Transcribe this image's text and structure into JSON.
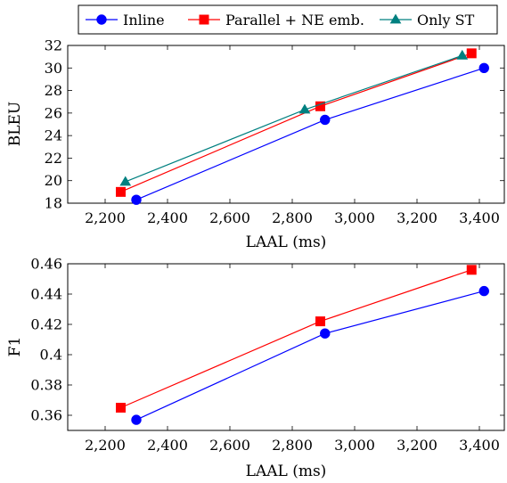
{
  "legend": {
    "placement": "top-center",
    "entries": [
      {
        "label": "Inline",
        "color": "#0000ff",
        "marker": "circle"
      },
      {
        "label": "Parallel + NE emb.",
        "color": "#ff0000",
        "marker": "square"
      },
      {
        "label": "Only ST",
        "color": "#008080",
        "marker": "triangle"
      }
    ]
  },
  "chart_data": [
    {
      "type": "line",
      "xlabel": "LAAL (ms)",
      "ylabel": "BLEU",
      "xlim": [
        2080,
        3480
      ],
      "ylim": [
        18,
        32
      ],
      "xticks": [
        "2,200",
        "2,400",
        "2,600",
        "2,800",
        "3,000",
        "3,200",
        "3,400"
      ],
      "xtick_values": [
        2200,
        2400,
        2600,
        2800,
        3000,
        3200,
        3400
      ],
      "yticks": [
        "18",
        "20",
        "22",
        "24",
        "26",
        "28",
        "30",
        "32"
      ],
      "ytick_values": [
        18,
        20,
        22,
        24,
        26,
        28,
        30,
        32
      ],
      "grid": false,
      "series": [
        {
          "name": "Inline",
          "color": "#0000ff",
          "marker": "circle",
          "x": [
            2300,
            2905,
            3415
          ],
          "y": [
            18.3,
            25.4,
            30.0
          ]
        },
        {
          "name": "Parallel + NE emb.",
          "color": "#ff0000",
          "marker": "square",
          "x": [
            2250,
            2890,
            3375
          ],
          "y": [
            19.0,
            26.6,
            31.3
          ]
        },
        {
          "name": "Only ST",
          "color": "#008080",
          "marker": "triangle",
          "x": [
            2265,
            2840,
            3345
          ],
          "y": [
            19.9,
            26.3,
            31.1
          ]
        }
      ]
    },
    {
      "type": "line",
      "xlabel": "LAAL (ms)",
      "ylabel": "F1",
      "xlim": [
        2080,
        3480
      ],
      "ylim": [
        0.35,
        0.46
      ],
      "xticks": [
        "2,200",
        "2,400",
        "2,600",
        "2,800",
        "3,000",
        "3,200",
        "3,400"
      ],
      "xtick_values": [
        2200,
        2400,
        2600,
        2800,
        3000,
        3200,
        3400
      ],
      "yticks": [
        "0.36",
        "0.38",
        "0.4",
        "0.42",
        "0.44",
        "0.46"
      ],
      "ytick_values": [
        0.36,
        0.38,
        0.4,
        0.42,
        0.44,
        0.46
      ],
      "grid": false,
      "series": [
        {
          "name": "Inline",
          "color": "#0000ff",
          "marker": "circle",
          "x": [
            2300,
            2905,
            3415
          ],
          "y": [
            0.357,
            0.414,
            0.442
          ]
        },
        {
          "name": "Parallel + NE emb.",
          "color": "#ff0000",
          "marker": "square",
          "x": [
            2250,
            2890,
            3375
          ],
          "y": [
            0.365,
            0.422,
            0.456
          ]
        }
      ]
    }
  ]
}
